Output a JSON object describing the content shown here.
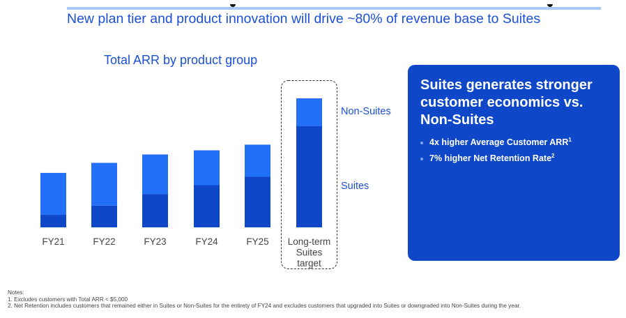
{
  "header": {
    "headline": "New plan tier and product innovation will drive ~80% of revenue base to Suites"
  },
  "colors": {
    "suites": "#0f47c9",
    "non_suites": "#2270f7",
    "accent_text": "#1a4fd6",
    "callout_bg": "#0f47c9",
    "top_rule": "#a9c8f7"
  },
  "chart_data": {
    "type": "bar",
    "stacked": true,
    "title": "Total ARR by product group",
    "xlabel": "",
    "ylabel": "",
    "units": "relative (Long-term target total = 100); no y-axis shown",
    "categories": [
      "FY21",
      "FY22",
      "FY23",
      "FY24",
      "FY25",
      "Long-term Suites target"
    ],
    "category_lines": [
      [
        "FY21"
      ],
      [
        "FY22"
      ],
      [
        "FY23"
      ],
      [
        "FY24"
      ],
      [
        "FY25"
      ],
      [
        "Long-term",
        "Suites",
        "target"
      ]
    ],
    "series": [
      {
        "name": "Suites",
        "values": [
          9.7,
          16.8,
          25.7,
          32.7,
          39.2,
          78.4
        ]
      },
      {
        "name": "Non-Suites",
        "values": [
          32.5,
          33.2,
          30.8,
          27.0,
          24.9,
          21.6
        ]
      }
    ],
    "ylim": [
      0,
      100
    ],
    "grid": false,
    "legend": [
      "Non-Suites",
      "Suites"
    ],
    "legend_placement": "right",
    "highlighted_category": "Long-term Suites target"
  },
  "callout": {
    "title": "Suites generates stronger customer economics vs. Non-Suites",
    "bullets": [
      {
        "text": "4x higher Average Customer ARR",
        "sup": "1"
      },
      {
        "text": "7% higher Net Retention Rate",
        "sup": "2"
      }
    ]
  },
  "notes": {
    "heading": "Notes:",
    "items": [
      "1. Excludes customers with Total ARR < $5,000",
      "2. Net Retention includes customers that remained either in Suites or Non-Suites for the entirety of FY24 and excludes customers that upgraded into Suites or downgraded into Non-Suites during the year."
    ]
  }
}
